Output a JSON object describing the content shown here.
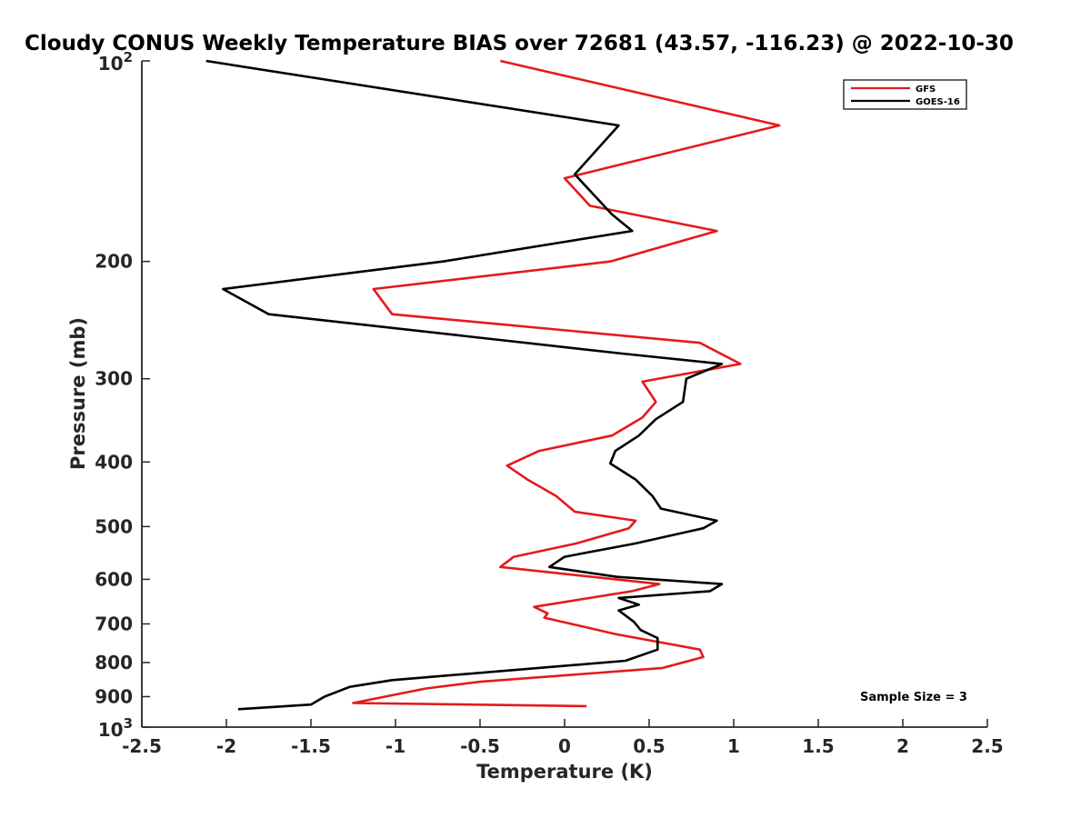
{
  "chart_data": {
    "type": "line",
    "title": "Cloudy CONUS Weekly Temperature BIAS over 72681 (43.57, -116.23) @ 2022-10-30",
    "xlabel": "Temperature (K)",
    "ylabel": "Pressure (mb)",
    "xlim": [
      -2.5,
      2.5
    ],
    "ylim": [
      100,
      1000
    ],
    "y_scale": "log",
    "y_reversed": true,
    "grid": false,
    "legend_position": "top-right",
    "x_ticks": [
      "-2.5",
      "-2",
      "-1.5",
      "-1",
      "-0.5",
      "0",
      "0.5",
      "1",
      "1.5",
      "2",
      "2.5"
    ],
    "y_ticks": [
      {
        "value": 100,
        "base": "10",
        "exp": "2"
      },
      {
        "value": 200,
        "label": "200"
      },
      {
        "value": 300,
        "label": "300"
      },
      {
        "value": 400,
        "label": "400"
      },
      {
        "value": 500,
        "label": "500"
      },
      {
        "value": 600,
        "label": "600"
      },
      {
        "value": 700,
        "label": "700"
      },
      {
        "value": 800,
        "label": "800"
      },
      {
        "value": 900,
        "label": "900"
      },
      {
        "value": 1000,
        "base": "10",
        "exp": "3"
      }
    ],
    "annotation": "Sample Size = 3",
    "series": [
      {
        "name": "GFS",
        "color": "#e41a1c",
        "points": [
          [
            -0.38,
            100
          ],
          [
            1.27,
            125
          ],
          [
            0.0,
            150
          ],
          [
            0.15,
            165
          ],
          [
            0.9,
            180
          ],
          [
            0.27,
            200
          ],
          [
            -1.13,
            220
          ],
          [
            -1.02,
            240
          ],
          [
            0.8,
            265
          ],
          [
            1.04,
            285
          ],
          [
            0.46,
            303
          ],
          [
            0.54,
            325
          ],
          [
            0.46,
            343
          ],
          [
            0.28,
            365
          ],
          [
            -0.15,
            385
          ],
          [
            -0.34,
            405
          ],
          [
            -0.22,
            425
          ],
          [
            -0.05,
            450
          ],
          [
            0.06,
            475
          ],
          [
            0.42,
            490
          ],
          [
            0.38,
            503
          ],
          [
            0.07,
            530
          ],
          [
            -0.3,
            555
          ],
          [
            -0.38,
            575
          ],
          [
            0.56,
            610
          ],
          [
            0.4,
            625
          ],
          [
            -0.18,
            660
          ],
          [
            -0.1,
            675
          ],
          [
            -0.12,
            685
          ],
          [
            0.3,
            725
          ],
          [
            0.8,
            765
          ],
          [
            0.82,
            785
          ],
          [
            0.58,
            815
          ],
          [
            -0.5,
            855
          ],
          [
            -0.82,
            875
          ],
          [
            -1.25,
            920
          ],
          [
            0.13,
            930
          ]
        ]
      },
      {
        "name": "GOES-16",
        "color": "#000000",
        "points": [
          [
            -2.12,
            100
          ],
          [
            0.32,
            125
          ],
          [
            0.06,
            148
          ],
          [
            0.28,
            170
          ],
          [
            0.4,
            180
          ],
          [
            -0.72,
            200
          ],
          [
            -2.02,
            220
          ],
          [
            -1.75,
            240
          ],
          [
            0.34,
            275
          ],
          [
            0.93,
            285
          ],
          [
            0.72,
            300
          ],
          [
            0.7,
            325
          ],
          [
            0.54,
            345
          ],
          [
            0.44,
            365
          ],
          [
            0.3,
            385
          ],
          [
            0.27,
            402
          ],
          [
            0.42,
            425
          ],
          [
            0.52,
            450
          ],
          [
            0.57,
            470
          ],
          [
            0.9,
            490
          ],
          [
            0.82,
            503
          ],
          [
            0.42,
            530
          ],
          [
            0.0,
            555
          ],
          [
            -0.09,
            575
          ],
          [
            0.31,
            595
          ],
          [
            0.93,
            610
          ],
          [
            0.86,
            625
          ],
          [
            0.32,
            640
          ],
          [
            0.44,
            655
          ],
          [
            0.32,
            668
          ],
          [
            0.41,
            695
          ],
          [
            0.45,
            715
          ],
          [
            0.55,
            735
          ],
          [
            0.55,
            765
          ],
          [
            0.36,
            795
          ],
          [
            -1.02,
            850
          ],
          [
            -1.27,
            870
          ],
          [
            -1.42,
            900
          ],
          [
            -1.5,
            925
          ],
          [
            -1.93,
            940
          ]
        ]
      }
    ]
  }
}
